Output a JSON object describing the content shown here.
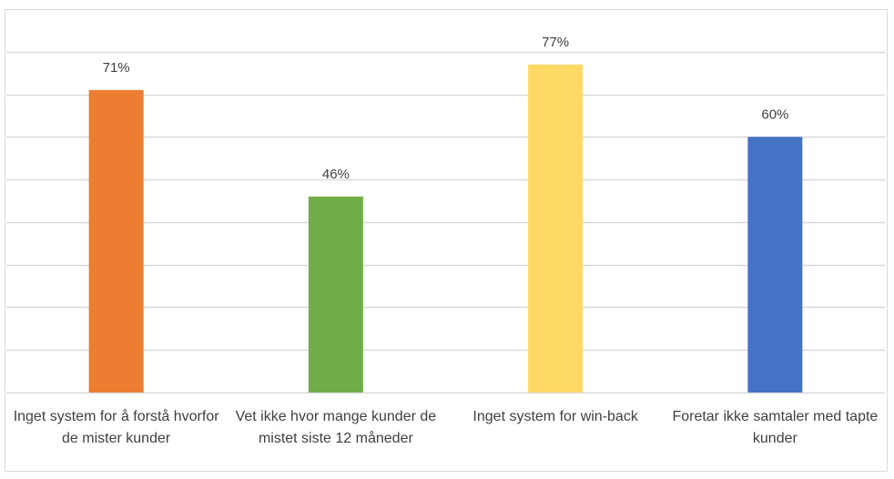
{
  "chart_data": {
    "type": "bar",
    "categories": [
      "Inget system for å forstå hvorfor de mister kunder",
      "Vet ikke hvor mange kunder de mistet siste 12 måneder",
      "Inget system for win-back",
      "Foretar ikke samtaler med tapte kunder"
    ],
    "values": [
      71,
      46,
      77,
      60
    ],
    "value_labels": [
      "71%",
      "46%",
      "77%",
      "60%"
    ],
    "colors": [
      "#ed7d31",
      "#70ad47",
      "#ffd966",
      "#4472c4"
    ],
    "ylim": [
      0,
      90
    ],
    "yticks": [
      0,
      10,
      20,
      30,
      40,
      50,
      60,
      70,
      80
    ],
    "grid": true
  }
}
